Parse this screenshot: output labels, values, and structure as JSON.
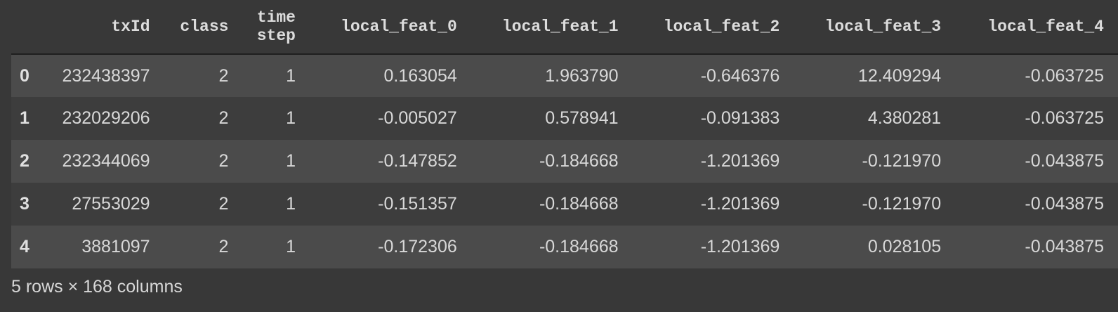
{
  "table": {
    "columns": [
      "",
      "txId",
      "class",
      "time_step_line1",
      "local_feat_0",
      "local_feat_1",
      "local_feat_2",
      "local_feat_3",
      "local_feat_4"
    ],
    "headers": {
      "txId": "txId",
      "class": "class",
      "time_step_line1": "time",
      "time_step_line2": "step",
      "local_feat_0": "local_feat_0",
      "local_feat_1": "local_feat_1",
      "local_feat_2": "local_feat_2",
      "local_feat_3": "local_feat_3",
      "local_feat_4": "local_feat_4"
    },
    "rows": [
      {
        "index": "0",
        "txId": "232438397",
        "class": "2",
        "time_step": "1",
        "f0": "0.163054",
        "f1": "1.963790",
        "f2": "-0.646376",
        "f3": "12.409294",
        "f4": "-0.063725"
      },
      {
        "index": "1",
        "txId": "232029206",
        "class": "2",
        "time_step": "1",
        "f0": "-0.005027",
        "f1": "0.578941",
        "f2": "-0.091383",
        "f3": "4.380281",
        "f4": "-0.063725"
      },
      {
        "index": "2",
        "txId": "232344069",
        "class": "2",
        "time_step": "1",
        "f0": "-0.147852",
        "f1": "-0.184668",
        "f2": "-1.201369",
        "f3": "-0.121970",
        "f4": "-0.043875"
      },
      {
        "index": "3",
        "txId": "27553029",
        "class": "2",
        "time_step": "1",
        "f0": "-0.151357",
        "f1": "-0.184668",
        "f2": "-1.201369",
        "f3": "-0.121970",
        "f4": "-0.043875"
      },
      {
        "index": "4",
        "txId": "3881097",
        "class": "2",
        "time_step": "1",
        "f0": "-0.172306",
        "f1": "-0.184668",
        "f2": "-1.201369",
        "f3": "0.028105",
        "f4": "-0.043875"
      }
    ]
  },
  "footer": {
    "summary": "5 rows × 168 columns"
  },
  "colors": {
    "background": "#383838",
    "row_odd": "#4b4b4b",
    "row_even": "#3d3d3d",
    "text": "#d8d8d8"
  }
}
